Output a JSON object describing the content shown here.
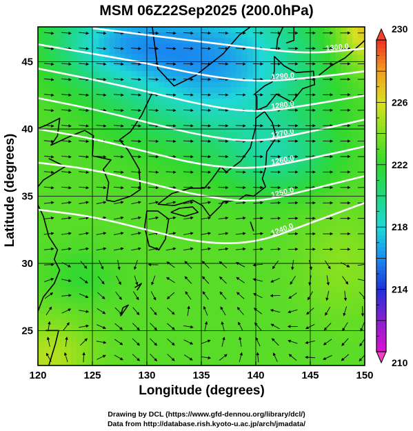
{
  "title": "MSM 06Z22Sep2025 (200.0hPa)",
  "credits": {
    "line1": "Drawing by DCL (https://www.gfd-dennou.org/library/dcl/)",
    "line2": "Data from http://database.rish.kyoto-u.ac.jp/arch/jmadata/"
  },
  "chart_data": {
    "type": "heatmap",
    "title": "MSM 06Z22Sep2025 (200.0hPa)",
    "xlabel": "Longitude (degrees)",
    "ylabel": "Latitude  (degrees)",
    "xlim": [
      120,
      150
    ],
    "ylim": [
      22.4,
      47.6
    ],
    "x_ticks": [
      120,
      125,
      130,
      135,
      140,
      145,
      150
    ],
    "y_ticks": [
      25,
      30,
      35,
      40,
      45
    ],
    "grid": true,
    "colorbar": {
      "min": 210,
      "max": 230,
      "ticks": [
        210,
        214,
        218,
        222,
        226,
        230
      ],
      "extend": "both"
    },
    "contours": [
      {
        "label": "1240.0",
        "lat_at_lon": [
          [
            120,
            34.0
          ],
          [
            125,
            33.5
          ],
          [
            130,
            32.5
          ],
          [
            135,
            31.5
          ],
          [
            140,
            31.5
          ],
          [
            145,
            33.0
          ],
          [
            150,
            34.5
          ]
        ]
      },
      {
        "label": "1250.0",
        "lat_at_lon": [
          [
            120,
            37.5
          ],
          [
            125,
            37.0
          ],
          [
            130,
            36.0
          ],
          [
            135,
            35.0
          ],
          [
            140,
            34.5
          ],
          [
            145,
            35.5
          ],
          [
            150,
            36.5
          ]
        ]
      },
      {
        "label": "1260.0",
        "lat_at_lon": [
          [
            120,
            40.0
          ],
          [
            125,
            39.3
          ],
          [
            130,
            38.3
          ],
          [
            135,
            37.3
          ],
          [
            140,
            37.0
          ],
          [
            145,
            37.8
          ],
          [
            150,
            38.7
          ]
        ]
      },
      {
        "label": "1270.0",
        "lat_at_lon": [
          [
            120,
            42.3
          ],
          [
            125,
            41.5
          ],
          [
            130,
            40.5
          ],
          [
            135,
            39.5
          ],
          [
            140,
            39.0
          ],
          [
            145,
            39.8
          ],
          [
            150,
            40.7
          ]
        ]
      },
      {
        "label": "1280.0",
        "lat_at_lon": [
          [
            120,
            44.5
          ],
          [
            125,
            43.7
          ],
          [
            130,
            42.8
          ],
          [
            135,
            41.8
          ],
          [
            140,
            41.2
          ],
          [
            145,
            41.8
          ],
          [
            150,
            42.5
          ]
        ]
      },
      {
        "label": "1290.0",
        "lat_at_lon": [
          [
            120,
            46.3
          ],
          [
            125,
            45.6
          ],
          [
            130,
            44.9
          ],
          [
            135,
            44.0
          ],
          [
            140,
            43.5
          ],
          [
            145,
            43.8
          ],
          [
            150,
            44.3
          ]
        ]
      },
      {
        "label": "1300.0",
        "lat_at_lon": [
          [
            125,
            47.5
          ],
          [
            130,
            47.0
          ],
          [
            135,
            46.5
          ],
          [
            140,
            46.0
          ],
          [
            145,
            45.6
          ],
          [
            150,
            46.0
          ]
        ]
      }
    ],
    "colorbar_label": ""
  }
}
